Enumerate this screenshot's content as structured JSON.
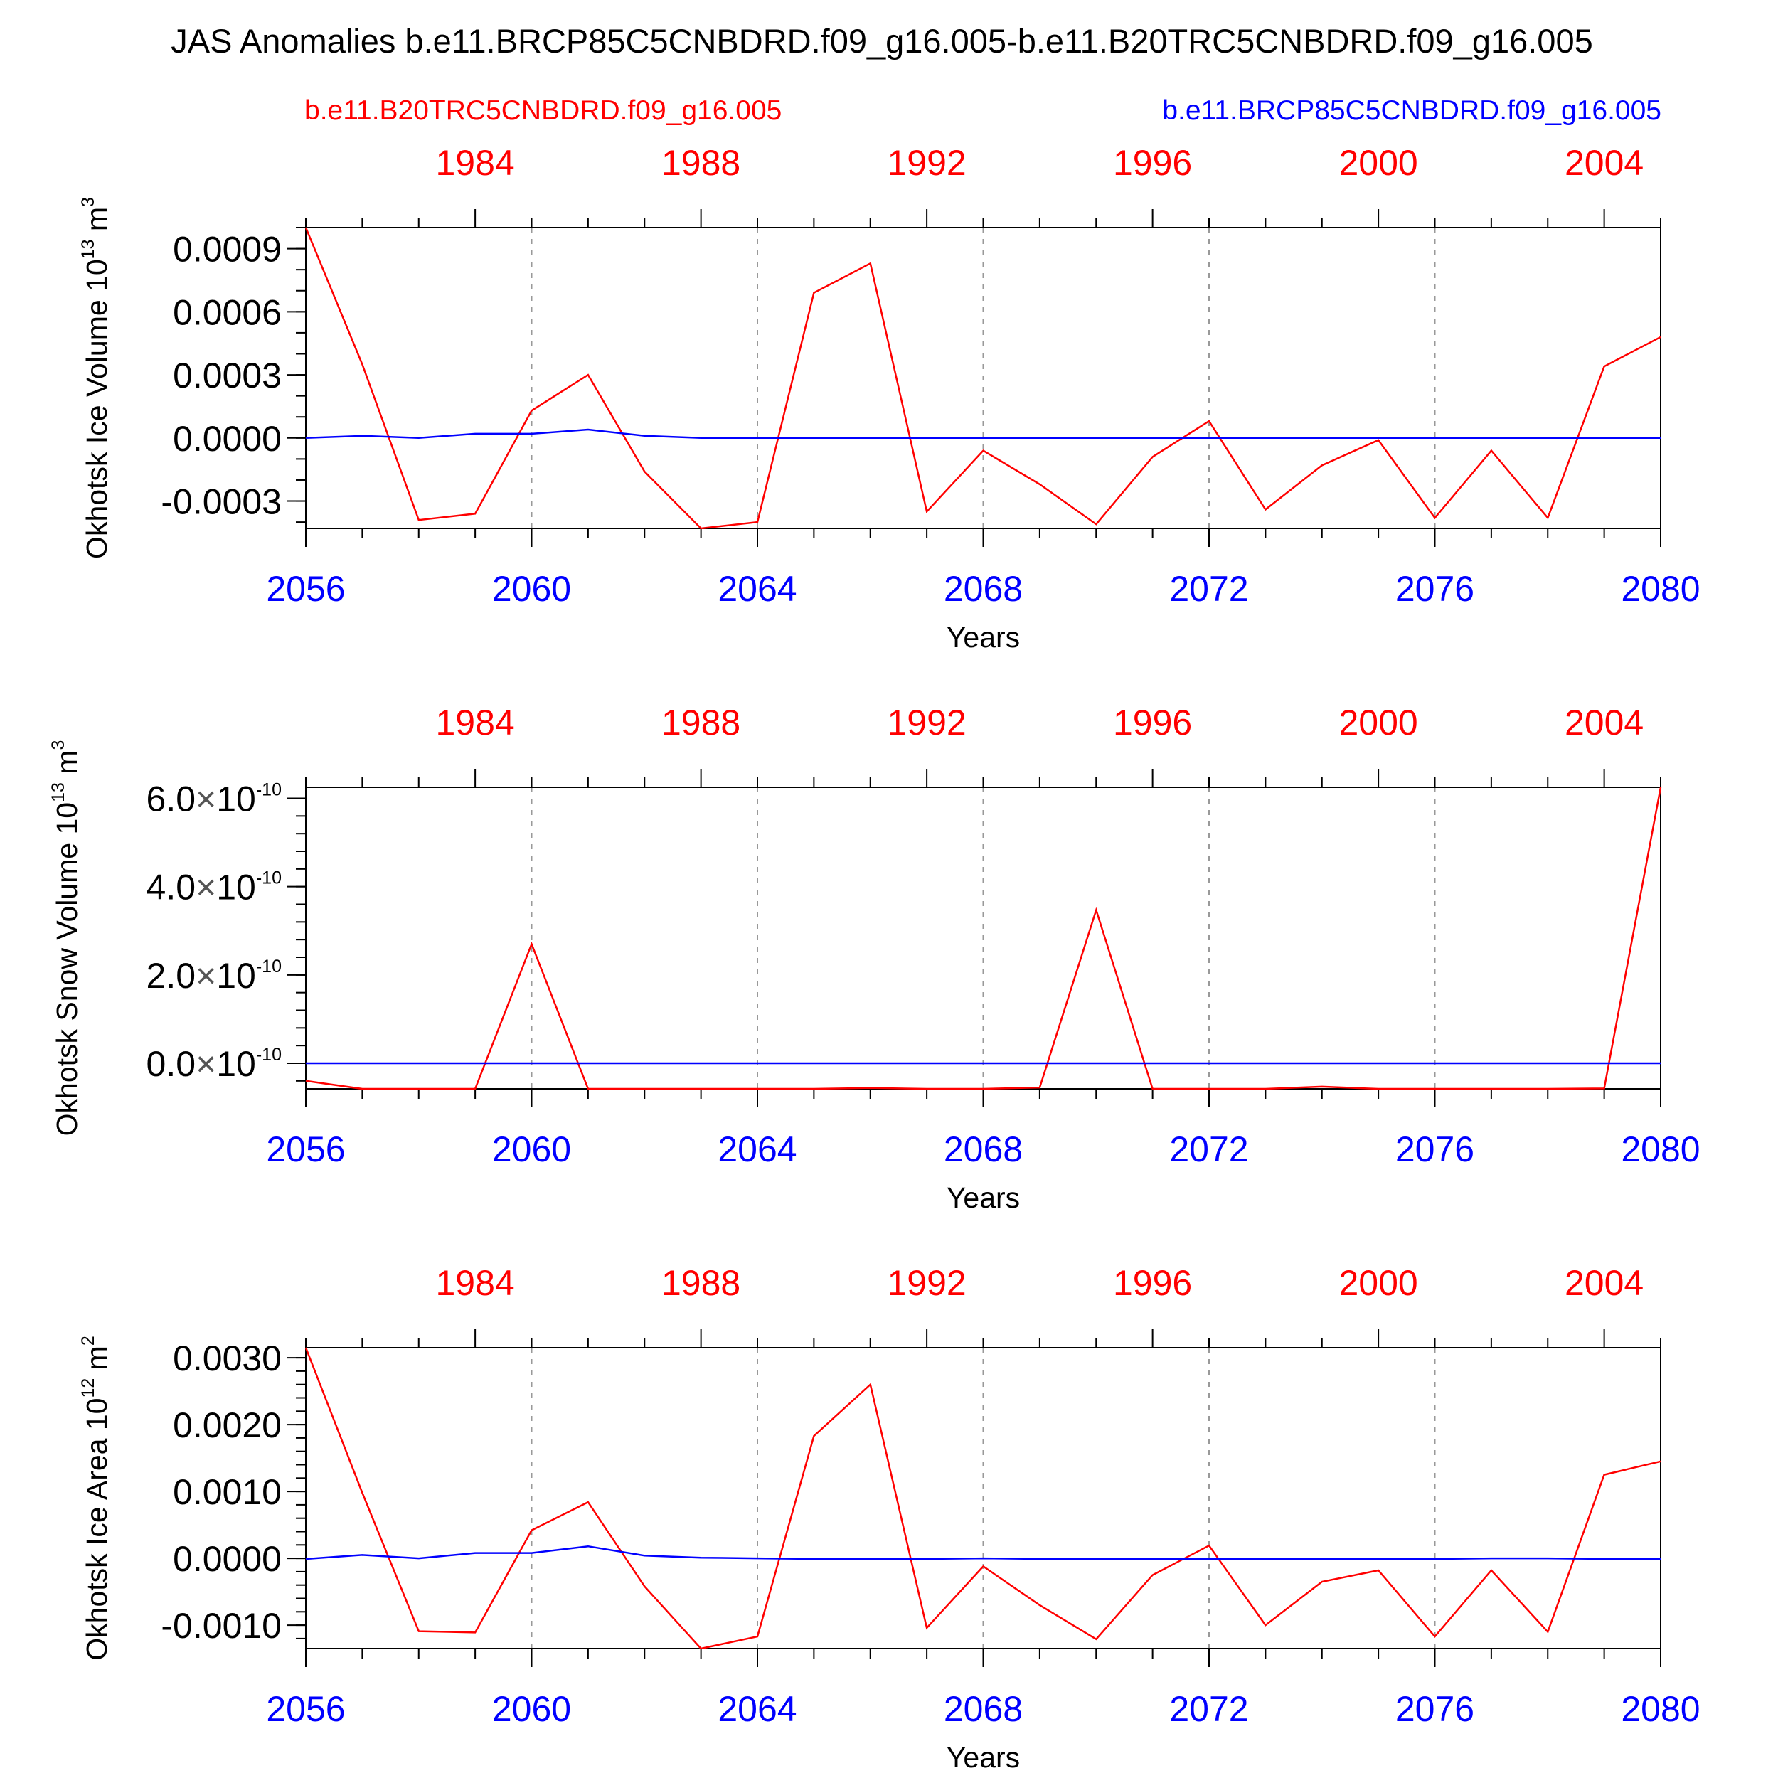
{
  "title": "JAS Anomalies b.e11.BRCP85C5CNBDRD.f09_g16.005-b.e11.B20TRC5CNBDRD.f09_g16.005",
  "legend": {
    "red": {
      "label": "b.e11.B20TRC5CNBDRD.f09_g16.005",
      "color": "#ff0000"
    },
    "blue": {
      "label": "b.e11.BRCP85C5CNBDRD.f09_g16.005",
      "color": "#0000ff"
    }
  },
  "colors": {
    "red": "#ff0000",
    "blue": "#0000ff",
    "axis": "#000000",
    "grid": "#999999"
  },
  "chart_data": [
    {
      "type": "line",
      "ylabel_text": "Okhotsk Ice Volume 10",
      "ylabel_exp": "13",
      "ylabel_unit": " m",
      "ylabel_unit_exp": "3",
      "xlabel": "Years",
      "x_bottom_ticks": [
        "2056",
        "2060",
        "2064",
        "2068",
        "2072",
        "2076",
        "2080"
      ],
      "x_top_ticks": [
        "1984",
        "1988",
        "1992",
        "1996",
        "2000",
        "2004"
      ],
      "xlim": [
        2056,
        2080
      ],
      "ylim": [
        -0.00043,
        0.001
      ],
      "y_ticks": [
        {
          "value": 0.0009,
          "label": "0.0009"
        },
        {
          "value": 0.0006,
          "label": "0.0006"
        },
        {
          "value": 0.0003,
          "label": "0.0003"
        },
        {
          "value": 0.0,
          "label": "0.0000"
        },
        {
          "value": -0.0003,
          "label": "-0.0003"
        }
      ],
      "y_minor_step": 0.0001,
      "x": [
        2056,
        2057,
        2058,
        2059,
        2060,
        2061,
        2062,
        2063,
        2064,
        2065,
        2066,
        2067,
        2068,
        2069,
        2070,
        2071,
        2072,
        2073,
        2074,
        2075,
        2076,
        2077,
        2078,
        2079,
        2080
      ],
      "series": [
        {
          "name": "b.e11.B20TRC5CNBDRD.f09_g16.005",
          "color": "#ff0000",
          "values": [
            0.001,
            0.00035,
            -0.00039,
            -0.00036,
            0.00013,
            0.0003,
            -0.00016,
            -0.00043,
            -0.0004,
            0.00069,
            0.00083,
            -0.00035,
            -6e-05,
            -0.00022,
            -0.00041,
            -9e-05,
            8e-05,
            -0.00034,
            -0.00013,
            -1e-05,
            -0.00038,
            -6e-05,
            -0.00038,
            0.00034,
            0.00048
          ]
        },
        {
          "name": "b.e11.BRCP85C5CNBDRD.f09_g16.005",
          "color": "#0000ff",
          "values": [
            0.0,
            1e-05,
            0.0,
            2e-05,
            2e-05,
            4e-05,
            1e-05,
            0.0,
            0.0,
            0.0,
            0.0,
            0.0,
            0.0,
            0.0,
            0.0,
            0.0,
            0.0,
            0.0,
            0.0,
            0.0,
            0.0,
            0.0,
            0.0,
            0.0,
            0.0
          ]
        }
      ]
    },
    {
      "type": "line",
      "ylabel_text": "Okhotsk Snow Volume 10",
      "ylabel_exp": "13",
      "ylabel_unit": " m",
      "ylabel_unit_exp": "3",
      "xlabel": "Years",
      "x_bottom_ticks": [
        "2056",
        "2060",
        "2064",
        "2068",
        "2072",
        "2076",
        "2080"
      ],
      "x_top_ticks": [
        "1984",
        "1988",
        "1992",
        "1996",
        "2000",
        "2004"
      ],
      "xlim": [
        2056,
        2080
      ],
      "ylim": [
        -0.58,
        6.25
      ],
      "y_ticks": [
        {
          "value": 6.0,
          "mantissa": "6.0",
          "base": "10",
          "exp": "-10"
        },
        {
          "value": 4.0,
          "mantissa": "4.0",
          "base": "10",
          "exp": "-10"
        },
        {
          "value": 2.0,
          "mantissa": "2.0",
          "base": "10",
          "exp": "-10"
        },
        {
          "value": 0.0,
          "mantissa": "0.0",
          "base": "10",
          "exp": "-10"
        }
      ],
      "y_units_note": "values in units of 10^-10",
      "y_minor_step": 0.4,
      "x": [
        2056,
        2057,
        2058,
        2059,
        2060,
        2061,
        2062,
        2063,
        2064,
        2065,
        2066,
        2067,
        2068,
        2069,
        2070,
        2071,
        2072,
        2073,
        2074,
        2075,
        2076,
        2077,
        2078,
        2079,
        2080
      ],
      "series": [
        {
          "name": "b.e11.B20TRC5CNBDRD.f09_g16.005",
          "color": "#ff0000",
          "values": [
            -0.4,
            -0.58,
            -0.58,
            -0.58,
            2.7,
            -0.58,
            -0.58,
            -0.58,
            -0.58,
            -0.58,
            -0.56,
            -0.58,
            -0.58,
            -0.55,
            3.47,
            -0.58,
            -0.58,
            -0.58,
            -0.53,
            -0.58,
            -0.58,
            -0.58,
            -0.58,
            -0.57,
            6.25
          ]
        },
        {
          "name": "b.e11.BRCP85C5CNBDRD.f09_g16.005",
          "color": "#0000ff",
          "values": [
            0.0,
            0.0,
            0.0,
            0.0,
            0.0,
            0.0,
            0.0,
            0.0,
            0.0,
            0.0,
            0.0,
            0.0,
            0.0,
            0.0,
            0.0,
            0.0,
            0.0,
            0.0,
            0.0,
            0.0,
            0.0,
            0.0,
            0.0,
            0.0,
            0.0
          ]
        }
      ]
    },
    {
      "type": "line",
      "ylabel_text": "Okhotsk Ice Area 10",
      "ylabel_exp": "12",
      "ylabel_unit": " m",
      "ylabel_unit_exp": "2",
      "xlabel": "Years",
      "x_bottom_ticks": [
        "2056",
        "2060",
        "2064",
        "2068",
        "2072",
        "2076",
        "2080"
      ],
      "x_top_ticks": [
        "1984",
        "1988",
        "1992",
        "1996",
        "2000",
        "2004"
      ],
      "xlim": [
        2056,
        2080
      ],
      "ylim": [
        -0.00135,
        0.00315
      ],
      "y_ticks": [
        {
          "value": 0.003,
          "label": "0.0030"
        },
        {
          "value": 0.002,
          "label": "0.0020"
        },
        {
          "value": 0.001,
          "label": "0.0010"
        },
        {
          "value": 0.0,
          "label": "0.0000"
        },
        {
          "value": -0.001,
          "label": "-0.0010"
        }
      ],
      "y_minor_step": 0.0002,
      "x": [
        2056,
        2057,
        2058,
        2059,
        2060,
        2061,
        2062,
        2063,
        2064,
        2065,
        2066,
        2067,
        2068,
        2069,
        2070,
        2071,
        2072,
        2073,
        2074,
        2075,
        2076,
        2077,
        2078,
        2079,
        2080
      ],
      "series": [
        {
          "name": "b.e11.B20TRC5CNBDRD.f09_g16.005",
          "color": "#ff0000",
          "values": [
            0.00315,
            0.00098,
            -0.00109,
            -0.00111,
            0.00042,
            0.00084,
            -0.00042,
            -0.00135,
            -0.00117,
            0.00183,
            0.0026,
            -0.00104,
            -0.00012,
            -0.0007,
            -0.00121,
            -0.00025,
            0.00019,
            -0.001,
            -0.00035,
            -0.00018,
            -0.00117,
            -0.00018,
            -0.0011,
            0.00125,
            0.00145
          ]
        },
        {
          "name": "b.e11.BRCP85C5CNBDRD.f09_g16.005",
          "color": "#0000ff",
          "values": [
            -1e-05,
            5e-05,
            0.0,
            8e-05,
            8e-05,
            0.00018,
            4e-05,
            1e-05,
            0.0,
            -1e-05,
            -1e-05,
            -1e-05,
            0.0,
            -1e-05,
            -1e-05,
            -1e-05,
            -1e-05,
            -1e-05,
            -1e-05,
            -1e-05,
            -1e-05,
            0.0,
            0.0,
            -1e-05,
            -1e-05
          ]
        }
      ]
    }
  ]
}
